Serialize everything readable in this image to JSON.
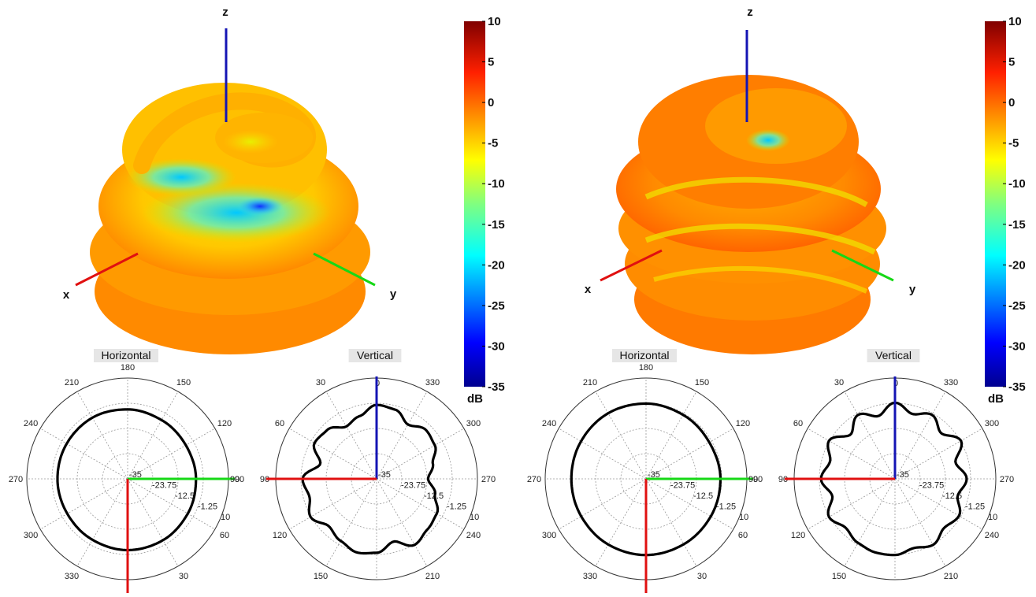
{
  "panels": [
    {
      "axis_labels": {
        "z": "z",
        "x": "x",
        "y": "y"
      },
      "colorbar": {
        "ticks": [
          "10",
          "5",
          "0",
          "-5",
          "-10",
          "-15",
          "-20",
          "-25",
          "-30",
          "-35"
        ],
        "unit": "dB"
      },
      "polar_plots": [
        {
          "title": "Horizontal",
          "angle_ticks": [
            {
              "t": "180",
              "a": 0
            },
            {
              "t": "150",
              "a": 30
            },
            {
              "t": "120",
              "a": 60
            },
            {
              "t": "90",
              "a": 90
            },
            {
              "t": "60",
              "a": 120
            },
            {
              "t": "30",
              "a": 150
            },
            {
              "t": "330",
              "a": 210
            },
            {
              "t": "300",
              "a": 240
            },
            {
              "t": "270",
              "a": 270
            },
            {
              "t": "240",
              "a": 300
            },
            {
              "t": "210",
              "a": 330
            }
          ],
          "angle_bottom_label": "0"
        },
        {
          "title": "Vertical",
          "angle_ticks": [
            {
              "t": "330",
              "a": 30
            },
            {
              "t": "300",
              "a": 60
            },
            {
              "t": "270",
              "a": 90
            },
            {
              "t": "240",
              "a": 120
            },
            {
              "t": "210",
              "a": 150
            },
            {
              "t": "150",
              "a": 210
            },
            {
              "t": "120",
              "a": 240
            },
            {
              "t": "90",
              "a": 270
            },
            {
              "t": "60",
              "a": 300
            },
            {
              "t": "30",
              "a": 330
            }
          ],
          "angle_top_label": "0"
        }
      ]
    },
    {
      "axis_labels": {
        "z": "z",
        "x": "x",
        "y": "y"
      },
      "colorbar": {
        "ticks": [
          "10",
          "5",
          "0",
          "-5",
          "-10",
          "-15",
          "-20",
          "-25",
          "-30",
          "-35"
        ],
        "unit": "dB"
      },
      "polar_plots": [
        {
          "title": "Horizontal",
          "angle_ticks": [
            {
              "t": "180",
              "a": 0
            },
            {
              "t": "150",
              "a": 30
            },
            {
              "t": "120",
              "a": 60
            },
            {
              "t": "90",
              "a": 90
            },
            {
              "t": "60",
              "a": 120
            },
            {
              "t": "30",
              "a": 150
            },
            {
              "t": "330",
              "a": 210
            },
            {
              "t": "300",
              "a": 240
            },
            {
              "t": "270",
              "a": 270
            },
            {
              "t": "240",
              "a": 300
            },
            {
              "t": "210",
              "a": 330
            }
          ],
          "angle_bottom_label": "0"
        },
        {
          "title": "Vertical",
          "angle_ticks": [
            {
              "t": "330",
              "a": 30
            },
            {
              "t": "300",
              "a": 60
            },
            {
              "t": "270",
              "a": 90
            },
            {
              "t": "240",
              "a": 120
            },
            {
              "t": "210",
              "a": 150
            },
            {
              "t": "150",
              "a": 210
            },
            {
              "t": "120",
              "a": 240
            },
            {
              "t": "90",
              "a": 270
            },
            {
              "t": "60",
              "a": 300
            },
            {
              "t": "30",
              "a": 330
            }
          ],
          "angle_top_label": "0"
        }
      ]
    }
  ],
  "chart_data": [
    {
      "type": "polar",
      "title": "Horizontal",
      "radial_ticks": [
        "-35",
        "-23.75",
        "-12.5",
        "-1.25",
        "10"
      ],
      "rlim": [
        -35,
        10
      ],
      "series": [
        {
          "angles_deg": [
            0,
            30,
            60,
            90,
            120,
            150,
            180,
            210,
            240,
            270,
            300,
            330
          ],
          "values_db": [
            -3.2,
            -3.4,
            -4.0,
            -4.5,
            -5.0,
            -4.7,
            -4.0,
            -3.5,
            -3.6,
            -3.7,
            -3.9,
            -3.6
          ]
        }
      ]
    },
    {
      "type": "polar",
      "title": "Vertical",
      "radial_ticks": [
        "-35",
        "-23.75",
        "-12.5",
        "-1.25",
        "10"
      ],
      "rlim": [
        -35,
        10
      ],
      "series": [
        {
          "angles_deg": [
            0,
            15,
            30,
            45,
            60,
            75,
            90,
            105,
            120,
            135,
            150,
            165,
            180,
            195,
            210,
            225,
            240,
            255,
            270,
            285,
            300,
            315,
            330,
            345
          ],
          "values_db": [
            -2,
            -6,
            -8,
            -4,
            -3,
            -9,
            -2,
            -4,
            -1,
            -5,
            -3,
            -1,
            -2,
            -6,
            -1,
            -3,
            -4,
            -8,
            -12,
            -9,
            -5,
            -4,
            -7,
            -3
          ]
        }
      ]
    },
    {
      "type": "polar",
      "title": "Horizontal",
      "radial_ticks": [
        "-35",
        "-23.75",
        "-12.5",
        "-1.25",
        "10"
      ],
      "rlim": [
        -35,
        10
      ],
      "series": [
        {
          "angles_deg": [
            0,
            30,
            60,
            90,
            120,
            150,
            180,
            210,
            240,
            270,
            300,
            330
          ],
          "values_db": [
            -1.0,
            -1.3,
            -1.6,
            -1.8,
            -2.4,
            -2.0,
            -1.4,
            -1.2,
            -1.5,
            -1.7,
            -1.6,
            -1.2
          ]
        }
      ]
    },
    {
      "type": "polar",
      "title": "Vertical",
      "radial_ticks": [
        "-35",
        "-23.75",
        "-12.5",
        "-1.25",
        "10"
      ],
      "rlim": [
        -35,
        10
      ],
      "series": [
        {
          "angles_deg": [
            0,
            15,
            30,
            45,
            60,
            75,
            90,
            105,
            120,
            135,
            150,
            165,
            180,
            195,
            210,
            225,
            240,
            255,
            270,
            285,
            300,
            315,
            330,
            345
          ],
          "values_db": [
            -1,
            -6,
            -2,
            -7,
            -1,
            -5,
            -2,
            -6,
            -1,
            -4,
            -2,
            -1,
            -1,
            -3,
            -1,
            -4,
            -2,
            -6,
            -3,
            -7,
            -1,
            -6,
            -2,
            -5
          ]
        }
      ]
    }
  ],
  "colors": {
    "x_axis": "#e01010",
    "y_axis": "#16d816",
    "z_axis": "#1414b4",
    "pattern": "#000000",
    "grid": "#9a9a9a"
  }
}
